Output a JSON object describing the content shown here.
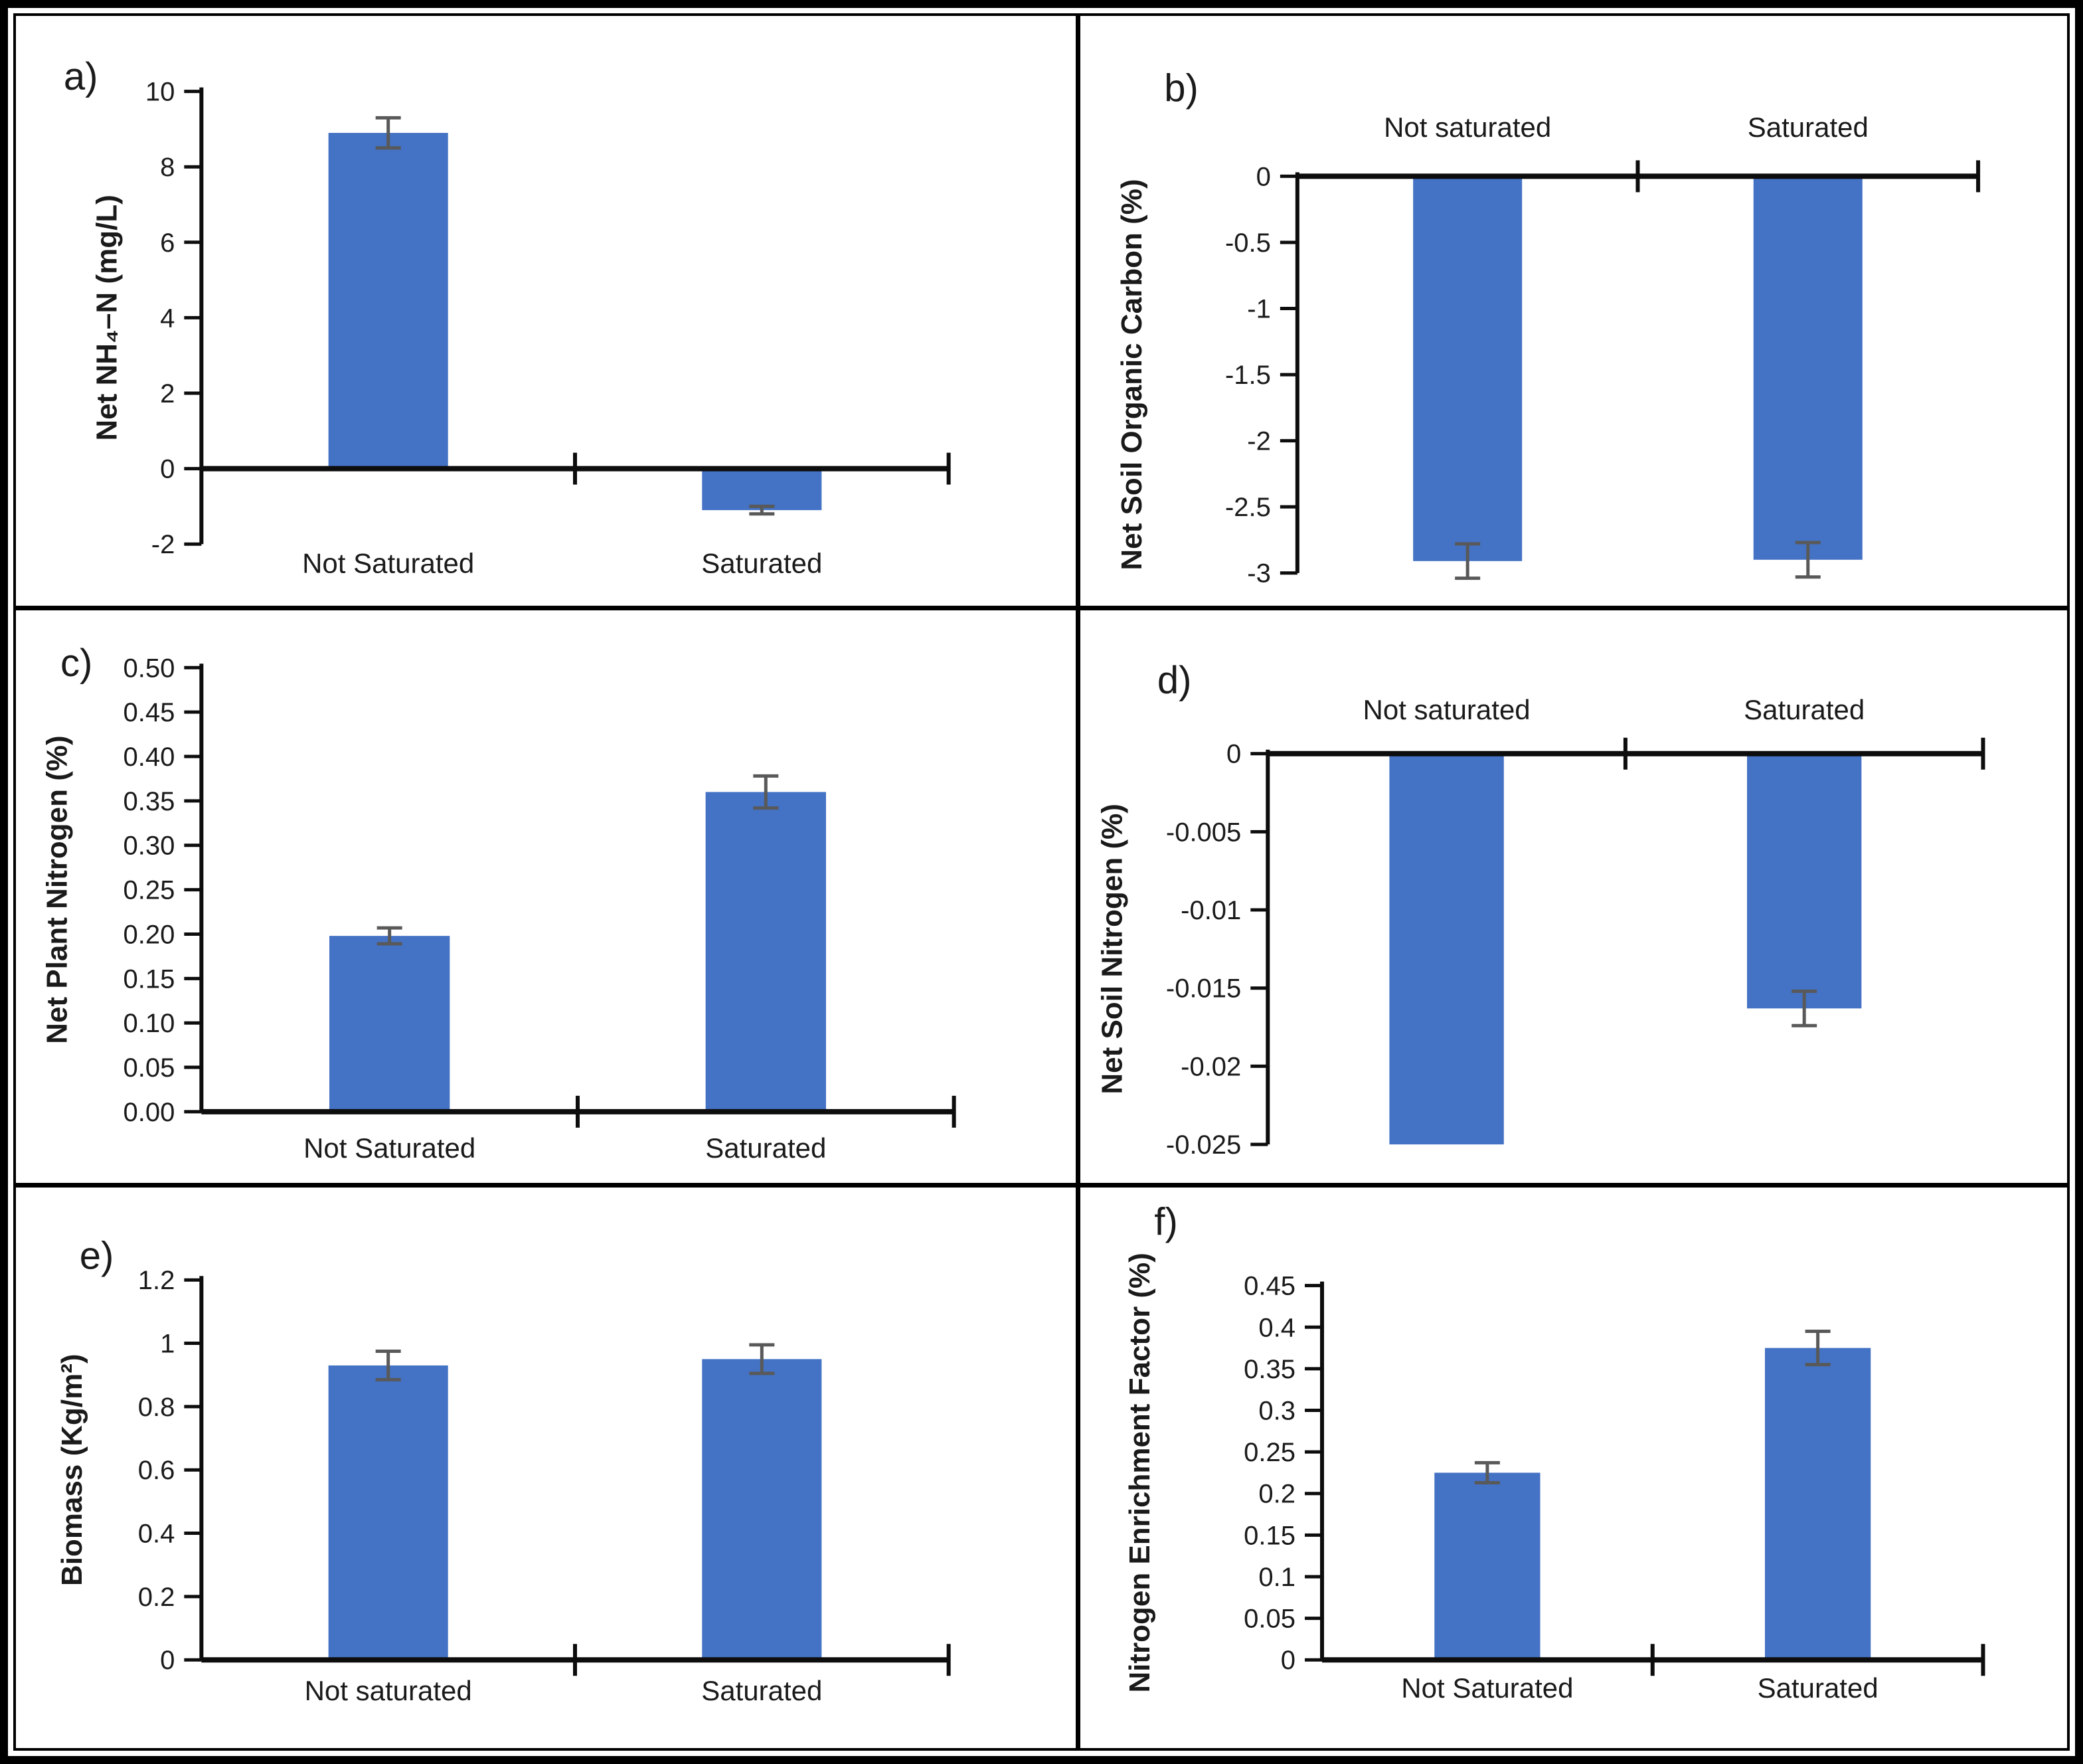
{
  "figure": {
    "description": "Six-panel bar chart figure comparing Not saturated vs Saturated treatments",
    "bar_color": "#4472C4",
    "error_color": "#595959",
    "axis_color": "#0d0d0d",
    "text_color": "#1a1a1a",
    "background": "#ffffff"
  },
  "chart_data": [
    {
      "panel": "a)",
      "type": "bar",
      "title": "",
      "xlabel": "",
      "ylabel": "Net NH₄–N (mg/L)",
      "categories": [
        "Not Saturated",
        "Saturated"
      ],
      "values": [
        8.9,
        -1.1
      ],
      "errors": [
        0.4,
        0.1
      ],
      "ylim": [
        -2,
        10
      ],
      "grid": false,
      "legend": "none",
      "category_labels_position": "below",
      "yticks": [
        {
          "value": 10,
          "label": "10"
        },
        {
          "value": 8,
          "label": "8"
        },
        {
          "value": 6,
          "label": "6"
        },
        {
          "value": 4,
          "label": "4"
        },
        {
          "value": 2,
          "label": "2"
        },
        {
          "value": 0,
          "label": "0"
        },
        {
          "value": -2,
          "label": "-2"
        }
      ]
    },
    {
      "panel": "b)",
      "type": "bar",
      "title": "",
      "xlabel": "",
      "ylabel": "Net Soil Organic Carbon (%)",
      "categories": [
        "Not saturated",
        "Saturated"
      ],
      "values": [
        -2.91,
        -2.9
      ],
      "errors": [
        0.13,
        0.13
      ],
      "ylim": [
        -3,
        0
      ],
      "grid": false,
      "legend": "none",
      "category_labels_position": "above",
      "yticks": [
        {
          "value": 0,
          "label": "0"
        },
        {
          "value": -0.5,
          "label": "-0.5"
        },
        {
          "value": -1,
          "label": "-1"
        },
        {
          "value": -1.5,
          "label": "-1.5"
        },
        {
          "value": -2,
          "label": "-2"
        },
        {
          "value": -2.5,
          "label": "-2.5"
        },
        {
          "value": -3,
          "label": "-3"
        }
      ]
    },
    {
      "panel": "c)",
      "type": "bar",
      "title": "",
      "xlabel": "",
      "ylabel": "Net Plant Nitrogen (%)",
      "categories": [
        "Not Saturated",
        "Saturated"
      ],
      "values": [
        0.198,
        0.36
      ],
      "errors": [
        0.009,
        0.018
      ],
      "ylim": [
        0,
        0.5
      ],
      "grid": false,
      "legend": "none",
      "category_labels_position": "below",
      "yticks": [
        {
          "value": 0.5,
          "label": "0.50"
        },
        {
          "value": 0.45,
          "label": "0.45"
        },
        {
          "value": 0.4,
          "label": "0.40"
        },
        {
          "value": 0.35,
          "label": "0.35"
        },
        {
          "value": 0.3,
          "label": "0.30"
        },
        {
          "value": 0.25,
          "label": "0.25"
        },
        {
          "value": 0.2,
          "label": "0.20"
        },
        {
          "value": 0.15,
          "label": "0.15"
        },
        {
          "value": 0.1,
          "label": "0.10"
        },
        {
          "value": 0.05,
          "label": "0.05"
        },
        {
          "value": 0,
          "label": "0.00"
        }
      ]
    },
    {
      "panel": "d)",
      "type": "bar",
      "title": "",
      "xlabel": "",
      "ylabel": "Net Soil Nitrogen (%)",
      "categories": [
        "Not saturated",
        "Saturated"
      ],
      "values": [
        -0.025,
        -0.0163
      ],
      "errors": [
        0,
        0.0011
      ],
      "ylim": [
        -0.025,
        0
      ],
      "grid": false,
      "legend": "none",
      "category_labels_position": "above",
      "yticks": [
        {
          "value": 0,
          "label": "0"
        },
        {
          "value": -0.005,
          "label": "-0.005"
        },
        {
          "value": -0.01,
          "label": "-0.01"
        },
        {
          "value": -0.015,
          "label": "-0.015"
        },
        {
          "value": -0.02,
          "label": "-0.02"
        },
        {
          "value": -0.025,
          "label": "-0.025"
        }
      ]
    },
    {
      "panel": "e)",
      "type": "bar",
      "title": "",
      "xlabel": "",
      "ylabel": "Biomass (Kg/m²)",
      "categories": [
        "Not saturated",
        "Saturated"
      ],
      "values": [
        0.93,
        0.95
      ],
      "errors": [
        0.045,
        0.045
      ],
      "ylim": [
        0,
        1.2
      ],
      "grid": false,
      "legend": "none",
      "category_labels_position": "below",
      "yticks": [
        {
          "value": 1.2,
          "label": "1.2"
        },
        {
          "value": 1,
          "label": "1"
        },
        {
          "value": 0.8,
          "label": "0.8"
        },
        {
          "value": 0.6,
          "label": "0.6"
        },
        {
          "value": 0.4,
          "label": "0.4"
        },
        {
          "value": 0.2,
          "label": "0.2"
        },
        {
          "value": 0,
          "label": "0"
        }
      ]
    },
    {
      "panel": "f)",
      "type": "bar",
      "title": "",
      "xlabel": "",
      "ylabel": "Nitrogen Enrichment Factor (%)",
      "categories": [
        "Not Saturated",
        "Saturated"
      ],
      "values": [
        0.225,
        0.375
      ],
      "errors": [
        0.012,
        0.02
      ],
      "ylim": [
        0,
        0.45
      ],
      "grid": false,
      "legend": "none",
      "category_labels_position": "below",
      "yticks": [
        {
          "value": 0.45,
          "label": "0.45"
        },
        {
          "value": 0.4,
          "label": "0.4"
        },
        {
          "value": 0.35,
          "label": "0.35"
        },
        {
          "value": 0.3,
          "label": "0.3"
        },
        {
          "value": 0.25,
          "label": "0.25"
        },
        {
          "value": 0.2,
          "label": "0.2"
        },
        {
          "value": 0.15,
          "label": "0.15"
        },
        {
          "value": 0.1,
          "label": "0.1"
        },
        {
          "value": 0.05,
          "label": "0.05"
        },
        {
          "value": 0,
          "label": "0"
        }
      ]
    }
  ]
}
